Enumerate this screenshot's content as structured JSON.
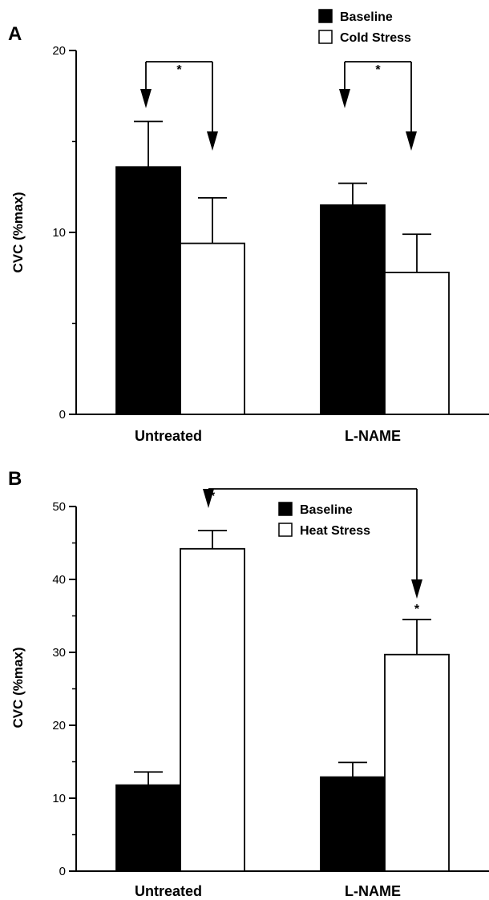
{
  "chart_data": [
    {
      "type": "bar",
      "panel": "A",
      "ylabel": "CVC (%max)",
      "ylim": [
        0,
        20
      ],
      "major_ticks": [
        0,
        10,
        20
      ],
      "categories": [
        "Untreated",
        "L-NAME"
      ],
      "series": [
        {
          "name": "Baseline",
          "color": "#000000",
          "values": [
            13.6,
            11.5
          ],
          "errors": [
            2.5,
            1.2
          ]
        },
        {
          "name": "Cold Stress",
          "color": "#ffffff",
          "values": [
            9.4,
            7.8
          ],
          "errors": [
            2.5,
            2.1
          ]
        }
      ],
      "annotations": [
        "*",
        "*"
      ],
      "legend": "top-right"
    },
    {
      "type": "bar",
      "panel": "B",
      "ylabel": "CVC (%max)",
      "ylim": [
        0,
        50
      ],
      "major_ticks": [
        0,
        10,
        20,
        30,
        40,
        50
      ],
      "categories": [
        "Untreated",
        "L-NAME"
      ],
      "series": [
        {
          "name": "Baseline",
          "color": "#000000",
          "values": [
            11.8,
            12.9
          ],
          "errors": [
            1.8,
            2.0
          ]
        },
        {
          "name": "Heat Stress",
          "color": "#ffffff",
          "values": [
            44.2,
            29.7
          ],
          "errors": [
            2.5,
            4.8
          ]
        }
      ],
      "annotations": [
        "*",
        "*"
      ],
      "legend": "top-center"
    }
  ]
}
